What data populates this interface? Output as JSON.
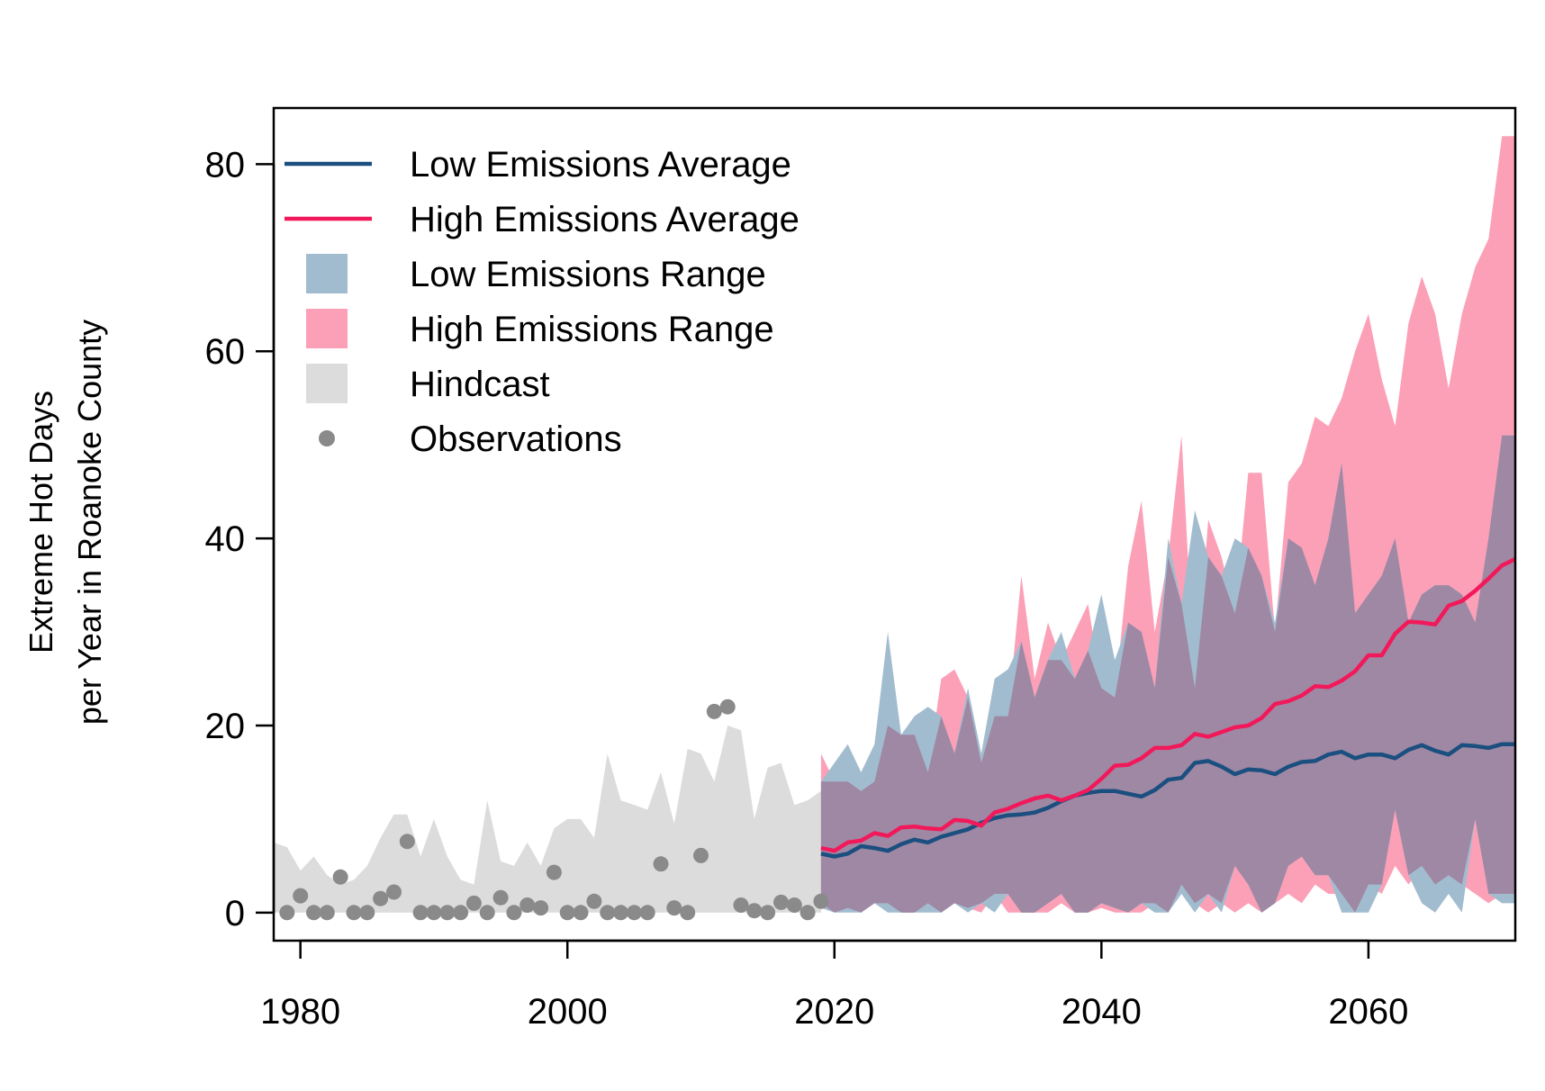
{
  "chart_data": {
    "type": "area",
    "ylabel_lines": [
      "Extreme Hot Days",
      "per Year in Roanoke County"
    ],
    "xlim": [
      1978,
      2071
    ],
    "ylim": [
      -3,
      86
    ],
    "x_ticks": [
      1980,
      2000,
      2020,
      2040,
      2060
    ],
    "y_ticks": [
      0,
      20,
      40,
      60,
      80
    ],
    "grid": false,
    "legend_position": "top-left",
    "legend": [
      {
        "label": "Low Emissions Average",
        "kind": "line",
        "color": "#1b4f7f"
      },
      {
        "label": "High Emissions Average",
        "kind": "line",
        "color": "#f2195a"
      },
      {
        "label": "Low Emissions Range",
        "kind": "fill",
        "color": "#a2bccf"
      },
      {
        "label": "High Emissions Range",
        "kind": "fill",
        "color": "#fba0b7"
      },
      {
        "label": "Hindcast",
        "kind": "fill",
        "color": "#dcdcdc"
      },
      {
        "label": "Observations",
        "kind": "point",
        "color": "#8a8a8a"
      }
    ],
    "colors": {
      "low_line": "#1b4f7f",
      "high_line": "#f2195a",
      "low_range": "#a2bccf",
      "high_range": "#fba0b7",
      "overlap": "#9f88a4",
      "hindcast": "#dcdcdc",
      "observations": "#8a8a8a"
    },
    "hindcast": {
      "x": [
        1978,
        1979,
        1980,
        1981,
        1982,
        1983,
        1984,
        1985,
        1986,
        1987,
        1988,
        1989,
        1990,
        1991,
        1992,
        1993,
        1994,
        1995,
        1996,
        1997,
        1998,
        1999,
        2000,
        2001,
        2002,
        2003,
        2004,
        2005,
        2006,
        2007,
        2008,
        2009,
        2010,
        2011,
        2012,
        2013,
        2014,
        2015,
        2016,
        2017,
        2018,
        2019
      ],
      "upper": [
        7.5,
        7,
        4.5,
        6,
        4,
        3,
        3.5,
        5,
        8,
        10.5,
        10.5,
        6,
        10,
        6,
        3.5,
        3,
        12,
        5.5,
        5,
        7.5,
        5,
        9,
        10,
        10,
        8,
        17,
        12,
        11.5,
        11,
        15,
        9.5,
        17.5,
        17,
        14,
        20,
        19.5,
        10,
        15.5,
        16,
        11.5,
        12,
        13
      ],
      "lower": [
        0,
        0,
        0,
        0,
        0,
        0,
        0,
        0,
        0,
        0,
        0,
        0,
        0,
        0,
        0,
        0,
        0,
        0,
        0,
        0,
        0,
        0,
        0,
        0,
        0,
        0,
        0,
        0,
        0,
        0,
        0,
        0,
        0,
        0,
        0,
        0,
        0,
        0,
        0,
        0,
        0,
        0
      ]
    },
    "observations": {
      "x": [
        1979,
        1980,
        1981,
        1982,
        1983,
        1984,
        1985,
        1986,
        1987,
        1988,
        1989,
        1990,
        1991,
        1992,
        1993,
        1994,
        1995,
        1996,
        1997,
        1998,
        1999,
        2000,
        2001,
        2002,
        2003,
        2004,
        2005,
        2006,
        2007,
        2008,
        2009,
        2010,
        2011,
        2012,
        2013,
        2014,
        2015,
        2016,
        2017,
        2018,
        2019
      ],
      "y": [
        0,
        1.8,
        0,
        0,
        3.8,
        0,
        0,
        1.5,
        2.2,
        7.6,
        0,
        0,
        0,
        0,
        1,
        0,
        1.6,
        0,
        0.8,
        0.5,
        4.3,
        0,
        0,
        1.2,
        0,
        0,
        0,
        0,
        5.2,
        0.5,
        0,
        6.1,
        21.5,
        22,
        0.8,
        0.2,
        0,
        1.1,
        0.8,
        0,
        1.2
      ]
    },
    "x": [
      2019,
      2020,
      2021,
      2022,
      2023,
      2024,
      2025,
      2026,
      2027,
      2028,
      2029,
      2030,
      2031,
      2032,
      2033,
      2034,
      2035,
      2036,
      2037,
      2038,
      2039,
      2040,
      2041,
      2042,
      2043,
      2044,
      2045,
      2046,
      2047,
      2048,
      2049,
      2050,
      2051,
      2052,
      2053,
      2054,
      2055,
      2056,
      2057,
      2058,
      2059,
      2060,
      2061,
      2062,
      2063,
      2064,
      2065,
      2066,
      2067,
      2068,
      2069,
      2070,
      2071
    ],
    "series": [
      {
        "name": "High Emissions Range",
        "kind": "range",
        "upper": [
          17,
          14,
          14,
          13,
          14,
          20,
          19,
          19,
          15,
          25,
          26,
          23,
          16,
          21,
          21,
          36,
          25,
          31,
          27,
          30,
          33,
          24,
          23,
          37,
          44,
          30,
          38,
          51,
          24,
          42,
          38,
          32,
          47,
          47,
          30,
          46,
          48,
          53,
          52,
          55,
          60,
          64,
          57,
          52,
          63,
          68,
          64,
          56,
          64,
          69,
          72,
          83,
          83
        ],
        "lower": [
          1,
          0,
          0.5,
          0,
          1,
          1,
          0,
          0,
          1,
          0,
          1,
          0.5,
          0,
          2,
          0,
          0,
          0,
          0,
          1,
          0,
          0,
          0.5,
          0,
          0,
          0,
          1,
          0,
          3,
          1,
          0,
          1,
          0,
          1,
          0,
          1,
          2,
          1,
          3,
          2,
          2,
          0,
          3,
          2,
          5,
          3,
          5,
          3,
          4,
          3,
          2,
          1,
          2,
          2
        ]
      },
      {
        "name": "Low Emissions Range",
        "kind": "range",
        "upper": [
          14,
          16,
          18,
          15,
          18,
          30,
          19,
          21,
          22,
          21,
          17,
          24,
          17,
          25,
          26,
          29,
          23,
          27,
          30,
          25,
          28,
          34,
          27,
          31,
          30,
          24,
          40,
          33,
          43,
          38,
          36,
          40,
          39,
          36,
          31,
          40,
          39,
          35,
          40,
          48,
          32,
          34,
          36,
          40,
          31,
          34,
          35,
          35,
          34,
          31,
          40,
          51,
          51
        ],
        "lower": [
          0.5,
          0,
          0,
          0,
          1,
          0,
          0,
          0,
          0,
          0,
          1,
          0,
          1,
          0,
          2,
          0,
          0,
          1,
          2,
          0,
          0,
          1,
          0.5,
          0,
          1,
          0,
          0,
          2,
          0,
          2,
          0,
          5,
          3,
          0,
          1,
          5,
          6,
          4,
          4,
          0,
          0,
          0,
          3,
          11,
          4,
          1,
          0,
          2,
          0,
          10,
          2,
          1,
          1
        ]
      },
      {
        "name": "Low Emissions Average",
        "kind": "line",
        "values": [
          6.3,
          6,
          6.3,
          7.1,
          6.9,
          6.6,
          7.3,
          7.8,
          7.5,
          8.1,
          8.5,
          8.9,
          9.6,
          10.1,
          10.4,
          10.5,
          10.7,
          11.2,
          11.9,
          12.5,
          12.8,
          13,
          13,
          12.7,
          12.4,
          13.1,
          14.2,
          14.4,
          16,
          16.2,
          15.6,
          14.8,
          15.3,
          15.2,
          14.8,
          15.6,
          16.1,
          16.2,
          16.9,
          17.2,
          16.5,
          16.9,
          16.9,
          16.5,
          17.4,
          17.9,
          17.3,
          16.9,
          17.9,
          17.8,
          17.6,
          18,
          18
        ]
      },
      {
        "name": "High Emissions Average",
        "kind": "line",
        "values": [
          6.9,
          6.6,
          7.5,
          7.7,
          8.5,
          8.2,
          9.1,
          9.2,
          9,
          8.9,
          9.9,
          9.8,
          9.3,
          10.7,
          11.1,
          11.7,
          12.2,
          12.5,
          12,
          12.5,
          13.1,
          14.3,
          15.7,
          15.8,
          16.5,
          17.6,
          17.6,
          17.9,
          19.1,
          18.8,
          19.3,
          19.8,
          20,
          20.8,
          22.3,
          22.6,
          23.2,
          24.2,
          24.1,
          24.8,
          25.8,
          27.5,
          27.5,
          29.8,
          31.1,
          31,
          30.8,
          32.8,
          33.3,
          34.4,
          35.7,
          37.1,
          37.8
        ]
      }
    ]
  }
}
